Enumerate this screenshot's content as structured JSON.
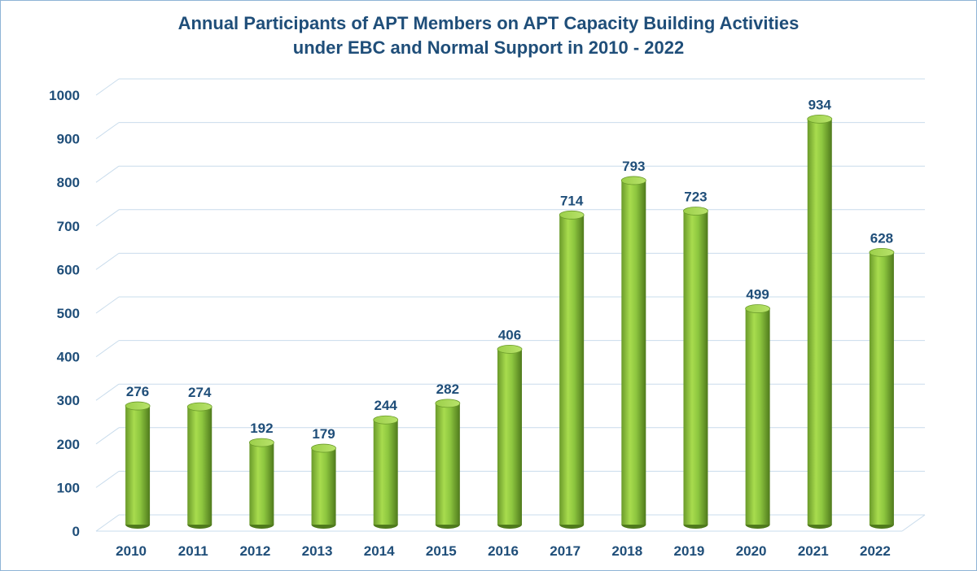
{
  "chart_data": {
    "type": "bar",
    "title_line1": "Annual Participants of APT Members on APT Capacity Building Activities",
    "title_line2": "under EBC and Normal Support in 2010 - 2022",
    "xlabel": "",
    "ylabel": "",
    "categories": [
      "2010",
      "2011",
      "2012",
      "2013",
      "2014",
      "2015",
      "2016",
      "2017",
      "2018",
      "2019",
      "2020",
      "2021",
      "2022"
    ],
    "values": [
      276,
      274,
      192,
      179,
      244,
      282,
      406,
      714,
      793,
      723,
      499,
      934,
      628
    ],
    "ylim": [
      0,
      1000
    ],
    "yticks": [
      0,
      100,
      200,
      300,
      400,
      500,
      600,
      700,
      800,
      900,
      1000
    ],
    "grid": true,
    "legend": "none",
    "bar_style": "3d-cylinder",
    "colors": {
      "bar": "#8dc63f",
      "bar_dark": "#4f7a1c",
      "text": "#1f4e79",
      "grid": "#c9dcec"
    }
  }
}
